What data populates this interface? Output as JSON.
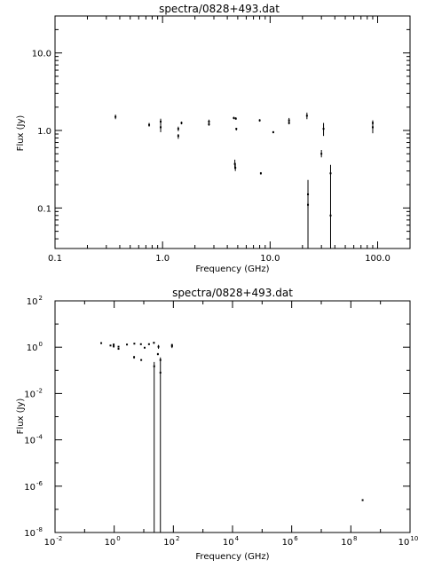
{
  "chart_data": [
    {
      "type": "scatter",
      "title": "spectra/0828+493.dat",
      "xlabel": "Frequency (GHz)",
      "ylabel": "Flux (Jy)",
      "xscale": "log",
      "yscale": "log",
      "xlim": [
        0.1,
        200
      ],
      "ylim": [
        0.03,
        30
      ],
      "xticks": [
        0.1,
        1,
        10,
        100
      ],
      "xtick_labels": [
        "0.1",
        "1.0",
        "10.0",
        "100.0"
      ],
      "yticks": [
        0.1,
        1,
        10
      ],
      "ytick_labels": [
        "0.1",
        "1.0",
        "10.0"
      ],
      "grid": false,
      "series": [
        {
          "points": [
            {
              "x": 0.365,
              "y": 1.5,
              "lo": 1.4,
              "hi": 1.6
            },
            {
              "x": 0.75,
              "y": 1.18,
              "lo": 1.12,
              "hi": 1.25
            },
            {
              "x": 0.96,
              "y": 1.3,
              "lo": 1.2,
              "hi": 1.42
            },
            {
              "x": 0.96,
              "y": 1.1,
              "lo": 0.95,
              "hi": 1.25
            },
            {
              "x": 1.4,
              "y": 1.05,
              "lo": 0.98,
              "hi": 1.12
            },
            {
              "x": 1.4,
              "y": 0.85,
              "lo": 0.78,
              "hi": 0.9
            },
            {
              "x": 1.5,
              "y": 1.25,
              "lo": 1.2,
              "hi": 1.3
            },
            {
              "x": 2.7,
              "y": 1.3,
              "lo": 1.22,
              "hi": 1.38
            },
            {
              "x": 2.7,
              "y": 1.2,
              "lo": 1.15,
              "hi": 1.25
            },
            {
              "x": 4.6,
              "y": 1.45,
              "lo": 1.4,
              "hi": 1.5
            },
            {
              "x": 4.8,
              "y": 1.42,
              "lo": 1.38,
              "hi": 1.48
            },
            {
              "x": 4.85,
              "y": 1.05,
              "lo": 1.0,
              "hi": 1.08
            },
            {
              "x": 4.7,
              "y": 0.37,
              "lo": 0.32,
              "hi": 0.42
            },
            {
              "x": 4.75,
              "y": 0.33,
              "lo": 0.3,
              "hi": 0.38
            },
            {
              "x": 8.0,
              "y": 1.35,
              "lo": 1.3,
              "hi": 1.4
            },
            {
              "x": 8.2,
              "y": 0.28,
              "lo": 0.27,
              "hi": 0.29
            },
            {
              "x": 10.7,
              "y": 0.95,
              "lo": 0.92,
              "hi": 0.98
            },
            {
              "x": 15,
              "y": 1.35,
              "lo": 1.28,
              "hi": 1.45
            },
            {
              "x": 15,
              "y": 1.25,
              "lo": 1.2,
              "hi": 1.3
            },
            {
              "x": 22,
              "y": 1.55,
              "lo": 1.4,
              "hi": 1.7
            },
            {
              "x": 22.5,
              "y": 0.15,
              "lo": 0.03,
              "hi": 0.23
            },
            {
              "x": 22.5,
              "y": 0.11,
              "lo": 0.1,
              "hi": 0.12
            },
            {
              "x": 30,
              "y": 0.5,
              "lo": 0.45,
              "hi": 0.56
            },
            {
              "x": 31.4,
              "y": 1.05,
              "lo": 0.85,
              "hi": 1.25
            },
            {
              "x": 36.5,
              "y": 0.28,
              "lo": 0.03,
              "hi": 0.36
            },
            {
              "x": 36.5,
              "y": 0.08,
              "lo": 0.08,
              "hi": 0.08
            },
            {
              "x": 90,
              "y": 1.1,
              "lo": 0.92,
              "hi": 1.3
            },
            {
              "x": 90,
              "y": 1.25,
              "lo": 1.15,
              "hi": 1.35
            }
          ]
        }
      ]
    },
    {
      "type": "scatter",
      "title": "spectra/0828+493.dat",
      "xlabel": "Frequency (GHz)",
      "ylabel": "Flux (Jy)",
      "xscale": "log",
      "yscale": "log",
      "xlim": [
        0.01,
        10000000000.0
      ],
      "ylim": [
        1e-08,
        100
      ],
      "xticks": [
        0.01,
        1,
        100,
        10000,
        1000000,
        100000000,
        10000000000
      ],
      "xtick_base": [
        "10",
        "10",
        "10",
        "10",
        "10",
        "10",
        "10"
      ],
      "xtick_exp": [
        "-2",
        "0",
        "2",
        "4",
        "6",
        "8",
        "10"
      ],
      "yticks": [
        1e-08,
        1e-06,
        0.0001,
        0.01,
        1,
        100
      ],
      "ytick_base": [
        "10",
        "10",
        "10",
        "10",
        "10",
        "10"
      ],
      "ytick_exp": [
        "-8",
        "-6",
        "-4",
        "-2",
        "0",
        "2"
      ],
      "grid": false,
      "series": [
        {
          "points": [
            {
              "x": 0.365,
              "y": 1.5,
              "lo": 1.4,
              "hi": 1.6
            },
            {
              "x": 0.75,
              "y": 1.18,
              "lo": 1.12,
              "hi": 1.25
            },
            {
              "x": 0.96,
              "y": 1.3,
              "lo": 1.2,
              "hi": 1.42
            },
            {
              "x": 0.96,
              "y": 1.1,
              "lo": 0.95,
              "hi": 1.25
            },
            {
              "x": 1.4,
              "y": 1.05,
              "lo": 0.98,
              "hi": 1.12
            },
            {
              "x": 1.4,
              "y": 0.85,
              "lo": 0.78,
              "hi": 0.9
            },
            {
              "x": 2.7,
              "y": 1.3,
              "lo": 1.22,
              "hi": 1.38
            },
            {
              "x": 4.8,
              "y": 1.42,
              "lo": 1.38,
              "hi": 1.48
            },
            {
              "x": 4.7,
              "y": 0.37,
              "lo": 0.32,
              "hi": 0.42
            },
            {
              "x": 8.0,
              "y": 1.35,
              "lo": 1.3,
              "hi": 1.4
            },
            {
              "x": 8.2,
              "y": 0.28,
              "lo": 0.27,
              "hi": 0.29
            },
            {
              "x": 10.7,
              "y": 0.95,
              "lo": 0.92,
              "hi": 0.98
            },
            {
              "x": 15,
              "y": 1.35,
              "lo": 1.28,
              "hi": 1.45
            },
            {
              "x": 22,
              "y": 1.55,
              "lo": 1.4,
              "hi": 1.7
            },
            {
              "x": 22.5,
              "y": 0.15,
              "lo": 1e-08,
              "hi": 0.23
            },
            {
              "x": 30,
              "y": 0.5,
              "lo": 0.45,
              "hi": 0.56
            },
            {
              "x": 31.4,
              "y": 1.05,
              "lo": 0.85,
              "hi": 1.25
            },
            {
              "x": 36.5,
              "y": 0.28,
              "lo": 1e-08,
              "hi": 0.36
            },
            {
              "x": 36.5,
              "y": 0.08,
              "lo": 0.08,
              "hi": 0.08
            },
            {
              "x": 90,
              "y": 1.1,
              "lo": 0.92,
              "hi": 1.3
            },
            {
              "x": 90,
              "y": 1.25,
              "lo": 1.15,
              "hi": 1.35
            },
            {
              "x": 250000000,
              "y": 2.5e-07,
              "lo": 2.5e-07,
              "hi": 2.5e-07
            }
          ]
        }
      ]
    }
  ]
}
